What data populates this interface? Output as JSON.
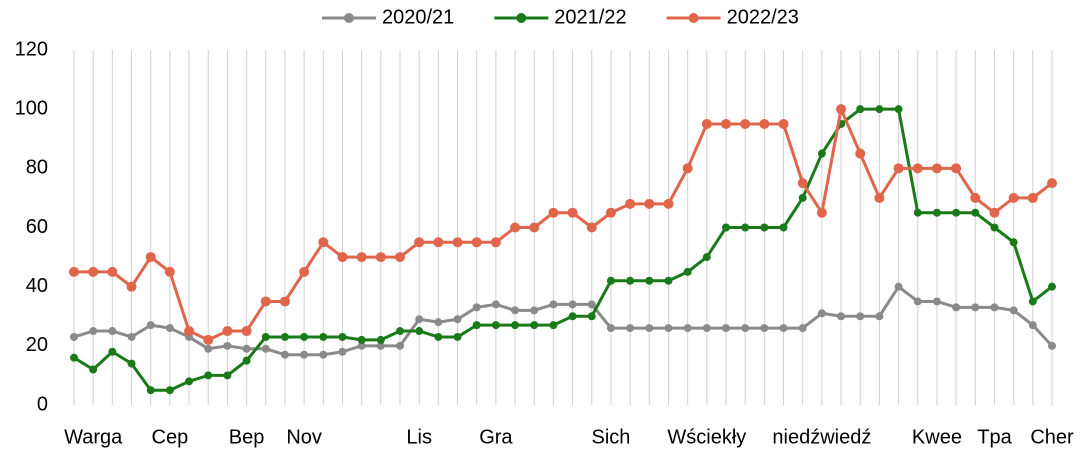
{
  "chart_data": {
    "type": "line",
    "categories": [
      null,
      "Warga",
      null,
      null,
      null,
      "Cep",
      null,
      null,
      null,
      "Bep",
      null,
      null,
      "Nov",
      null,
      null,
      null,
      null,
      null,
      "Lis",
      null,
      null,
      null,
      "Gra",
      null,
      null,
      null,
      null,
      null,
      "Sich",
      null,
      null,
      null,
      null,
      "Wściekły",
      null,
      null,
      null,
      null,
      null,
      "niedźwiedź",
      null,
      null,
      null,
      null,
      null,
      "Kwee",
      null,
      null,
      "Tpa",
      null,
      null,
      "Cher"
    ],
    "series": [
      {
        "name": "2020/21",
        "color": "#8a8a8a",
        "values": [
          23,
          25,
          25,
          23,
          27,
          26,
          23,
          19,
          20,
          19,
          19,
          17,
          17,
          17,
          18,
          20,
          20,
          20,
          29,
          28,
          29,
          33,
          34,
          32,
          32,
          34,
          34,
          34,
          26,
          26,
          26,
          26,
          26,
          26,
          26,
          26,
          26,
          26,
          26,
          31,
          30,
          30,
          30,
          40,
          35,
          35,
          33,
          33,
          33,
          32,
          27,
          20
        ]
      },
      {
        "name": "2021/22",
        "color": "#1a7a1a",
        "values": [
          16,
          12,
          18,
          14,
          5,
          5,
          8,
          10,
          10,
          15,
          23,
          23,
          23,
          23,
          23,
          22,
          22,
          25,
          25,
          23,
          23,
          27,
          27,
          27,
          27,
          27,
          30,
          30,
          42,
          42,
          42,
          42,
          45,
          50,
          60,
          60,
          60,
          60,
          70,
          85,
          95,
          100,
          100,
          100,
          65,
          65,
          65,
          65,
          60,
          55,
          35,
          40
        ]
      },
      {
        "name": "2022/23",
        "color": "#e0654a",
        "values": [
          45,
          45,
          45,
          40,
          50,
          45,
          25,
          22,
          25,
          25,
          35,
          35,
          45,
          55,
          50,
          50,
          50,
          50,
          55,
          55,
          55,
          55,
          55,
          60,
          60,
          65,
          65,
          60,
          65,
          68,
          68,
          68,
          80,
          95,
          95,
          95,
          95,
          95,
          75,
          65,
          100,
          85,
          70,
          80,
          80,
          80,
          80,
          70,
          65,
          70,
          70,
          75
        ]
      }
    ],
    "ylim": [
      0,
      120
    ],
    "yticks": [
      0,
      20,
      40,
      60,
      80,
      100,
      120
    ],
    "grid": "vertical",
    "legend": "top"
  }
}
